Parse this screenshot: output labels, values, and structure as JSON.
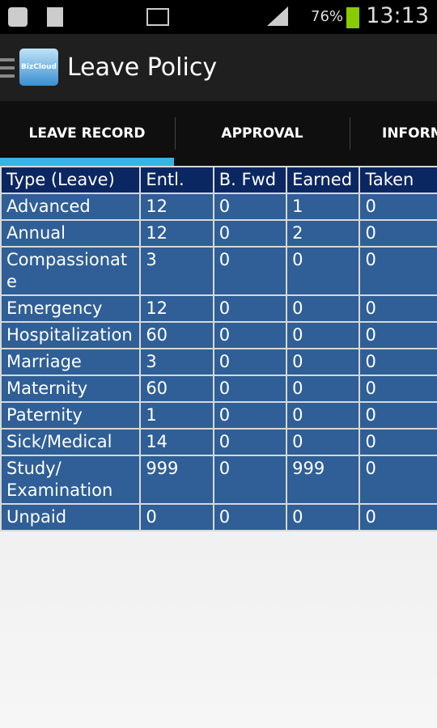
{
  "status_bar": {
    "battery": "76%",
    "time": "13:13"
  },
  "action_bar": {
    "logo": "BizCloud",
    "title": "Leave Policy"
  },
  "tabs": [
    "LEAVE RECORD",
    "APPROVAL",
    "INFORMATION"
  ],
  "table": {
    "header": [
      "Type (Leave)",
      "Entl.",
      "B. Fwd",
      "Earned",
      "Taken"
    ],
    "rows": [
      [
        "Advanced",
        "12",
        "0",
        "1",
        "0"
      ],
      [
        "Annual",
        "12",
        "0",
        "2",
        "0"
      ],
      [
        "Compassionate",
        "3",
        "0",
        "0",
        "0"
      ],
      [
        "Emergency",
        "12",
        "0",
        "0",
        "0"
      ],
      [
        "Hospitalization",
        "60",
        "0",
        "0",
        "0"
      ],
      [
        "Marriage",
        "3",
        "0",
        "0",
        "0"
      ],
      [
        "Maternity",
        "60",
        "0",
        "0",
        "0"
      ],
      [
        "Paternity",
        "1",
        "0",
        "0",
        "0"
      ],
      [
        "Sick/Medical",
        "14",
        "0",
        "0",
        "0"
      ],
      [
        "Study/ Examination",
        "999",
        "0",
        "999",
        "0"
      ],
      [
        "Unpaid",
        "0",
        "0",
        "0",
        "0"
      ]
    ]
  }
}
